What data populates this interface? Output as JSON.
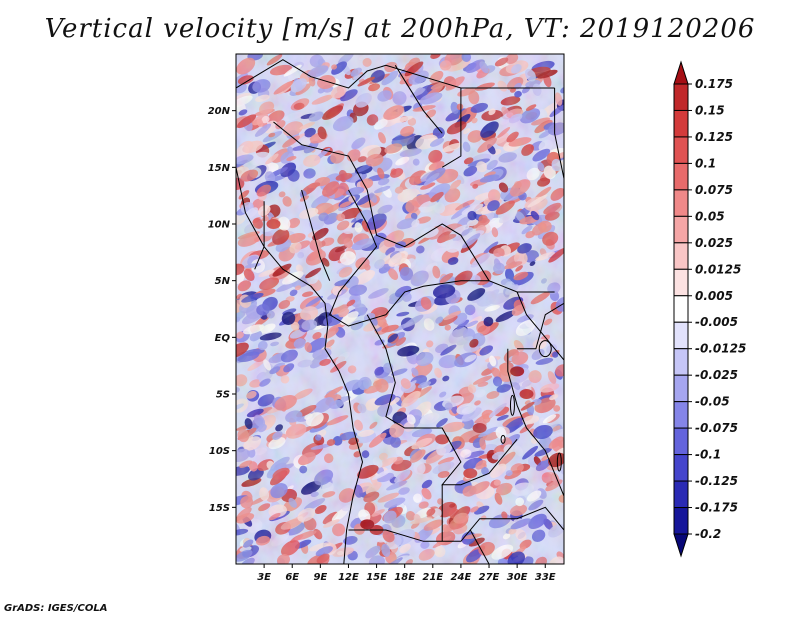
{
  "title": "Vertical velocity [m/s] at 200hPa, VT: 2019120206",
  "credit": "GrADS: IGES/COLA",
  "map": {
    "lon_range": [
      0,
      35
    ],
    "lat_range": [
      -20,
      25
    ],
    "lat_ticks": [
      {
        "value": 20,
        "label": "20N"
      },
      {
        "value": 15,
        "label": "15N"
      },
      {
        "value": 10,
        "label": "10N"
      },
      {
        "value": 5,
        "label": "5N"
      },
      {
        "value": 0,
        "label": "EQ"
      },
      {
        "value": -5,
        "label": "5S"
      },
      {
        "value": -10,
        "label": "10S"
      },
      {
        "value": -15,
        "label": "15S"
      }
    ],
    "lon_ticks": [
      {
        "value": 3,
        "label": "3E"
      },
      {
        "value": 6,
        "label": "6E"
      },
      {
        "value": 9,
        "label": "9E"
      },
      {
        "value": 12,
        "label": "12E"
      },
      {
        "value": 15,
        "label": "15E"
      },
      {
        "value": 18,
        "label": "18E"
      },
      {
        "value": 21,
        "label": "21E"
      },
      {
        "value": 24,
        "label": "24E"
      },
      {
        "value": 27,
        "label": "27E"
      },
      {
        "value": 30,
        "label": "30E"
      },
      {
        "value": 33,
        "label": "33E"
      }
    ]
  },
  "colorbar": {
    "levels": [
      "0.175",
      "0.15",
      "0.125",
      "0.1",
      "0.075",
      "0.05",
      "0.025",
      "0.0125",
      "0.005",
      "-0.005",
      "-0.0125",
      "-0.025",
      "-0.05",
      "-0.075",
      "-0.1",
      "-0.125",
      "-0.175",
      "-0.2"
    ],
    "colors": [
      "#a50f15",
      "#c0282a",
      "#d33b3b",
      "#e05353",
      "#e86b6b",
      "#f08989",
      "#f5a6a6",
      "#f9c6c6",
      "#fce2e2",
      "#ffffff",
      "#e2e2fc",
      "#c6c6f7",
      "#a6a6f0",
      "#8585e8",
      "#6464dc",
      "#4545cc",
      "#2a2ab4",
      "#16169a",
      "#080878"
    ]
  }
}
